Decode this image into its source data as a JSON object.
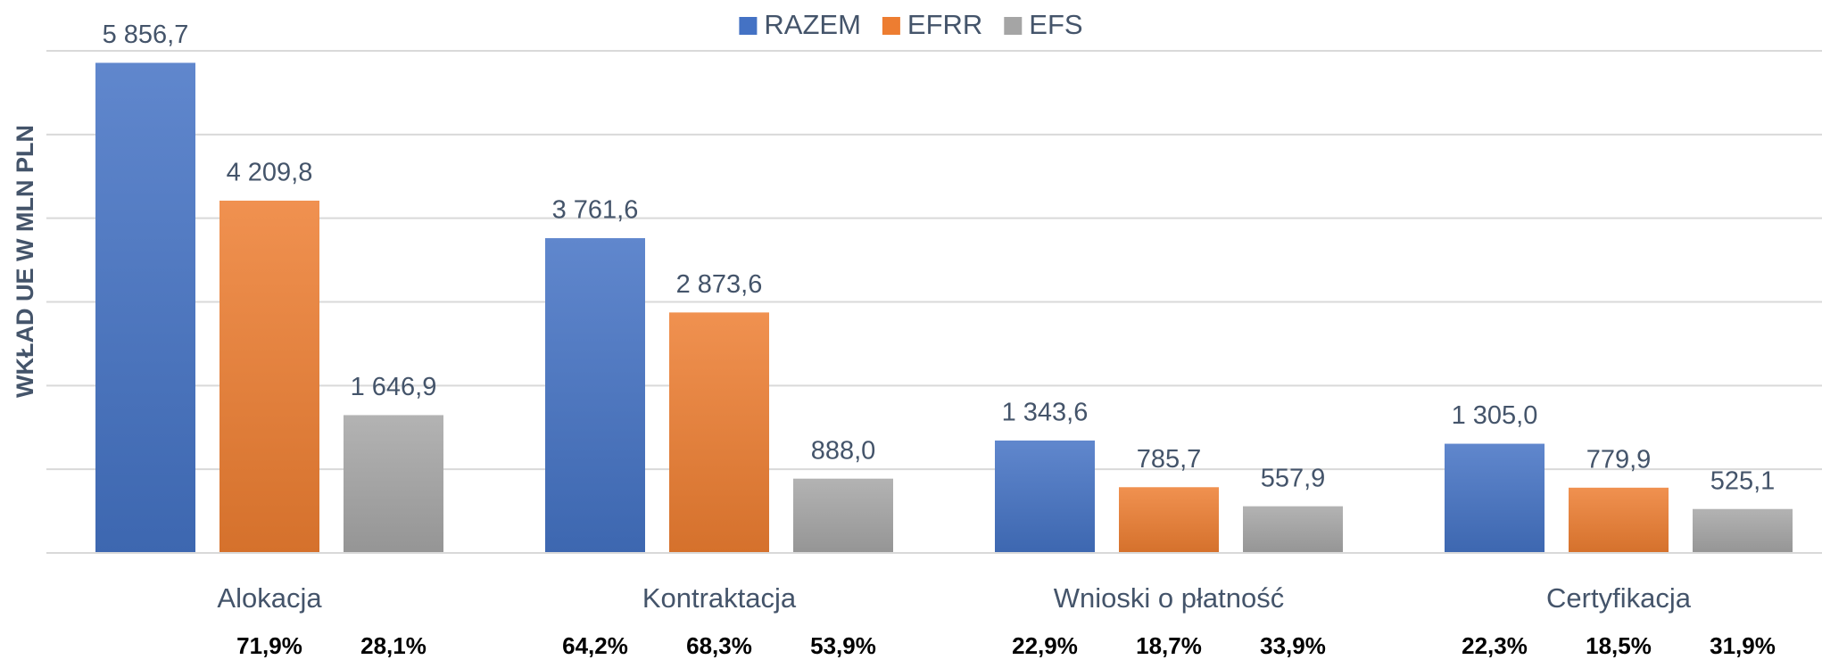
{
  "chart_data": {
    "type": "bar",
    "y_label": "WKŁAD UE W MLN PLN",
    "categories": [
      "Alokacja",
      "Kontraktacja",
      "Wnioski o płatność",
      "Certyfikacja"
    ],
    "series": [
      {
        "name": "RAZEM",
        "color": "#4472c4",
        "values": [
          5856.7,
          3761.6,
          1343.6,
          1305.0
        ],
        "value_labels": [
          "5 856,7",
          "3 761,6",
          "1 343,6",
          "1 305,0"
        ],
        "share_labels": [
          null,
          "64,2%",
          "22,9%",
          "22,3%"
        ]
      },
      {
        "name": "EFRR",
        "color": "#ed7d31",
        "values": [
          4209.8,
          2873.6,
          785.7,
          779.9
        ],
        "value_labels": [
          "4 209,8",
          "2 873,6",
          "785,7",
          "779,9"
        ],
        "share_labels": [
          "71,9%",
          "68,3%",
          "18,7%",
          "18,5%"
        ]
      },
      {
        "name": "EFS",
        "color": "#a5a5a5",
        "values": [
          1646.9,
          888.0,
          557.9,
          525.1
        ],
        "value_labels": [
          "1 646,9",
          "888,0",
          "557,9",
          "525,1"
        ],
        "share_labels": [
          "28,1%",
          "53,9%",
          "33,9%",
          "31,9%"
        ]
      }
    ],
    "ylim": [
      0,
      6000
    ],
    "yticks": [
      0,
      1000,
      2000,
      3000,
      4000,
      5000,
      6000
    ],
    "grid": true,
    "legend": "top"
  }
}
